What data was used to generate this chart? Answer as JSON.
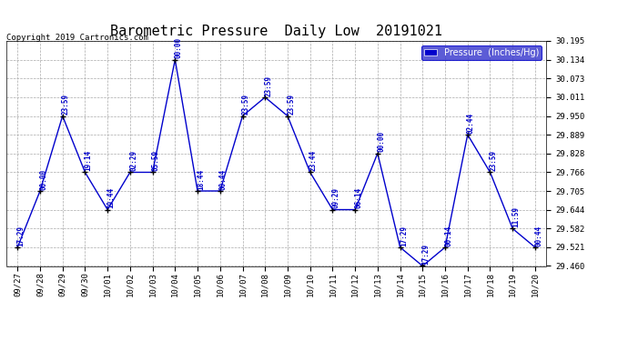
{
  "title": "Barometric Pressure  Daily Low  20191021",
  "copyright": "Copyright 2019 Cartronics.com",
  "legend_label": "Pressure  (Inches/Hg)",
  "x_labels": [
    "09/27",
    "09/28",
    "09/29",
    "09/30",
    "10/01",
    "10/02",
    "10/03",
    "10/04",
    "10/05",
    "10/06",
    "10/07",
    "10/08",
    "10/09",
    "10/10",
    "10/11",
    "10/12",
    "10/13",
    "10/14",
    "10/15",
    "10/16",
    "10/17",
    "10/18",
    "10/19",
    "10/20"
  ],
  "y_values": [
    29.521,
    29.705,
    29.95,
    29.766,
    29.644,
    29.766,
    29.766,
    30.134,
    29.705,
    29.705,
    29.95,
    30.011,
    29.95,
    29.766,
    29.644,
    29.644,
    29.828,
    29.521,
    29.46,
    29.521,
    29.889,
    29.766,
    29.582,
    29.521
  ],
  "point_labels": [
    "17:29",
    "00:00",
    "23:59",
    "19:14",
    "19:44",
    "02:29",
    "05:59",
    "00:00",
    "18:44",
    "00:44",
    "23:59",
    "23:59",
    "23:59",
    "23:44",
    "09:29",
    "06:14",
    "00:00",
    "17:29",
    "17:29",
    "00:14",
    "02:44",
    "23:59",
    "11:59",
    "00:44"
  ],
  "line_color": "#0000cc",
  "marker_color": "#000000",
  "label_color": "#0000cc",
  "grid_color": "#aaaaaa",
  "background_color": "#ffffff",
  "ylim_min": 29.46,
  "ylim_max": 30.195,
  "yticks": [
    29.46,
    29.521,
    29.582,
    29.644,
    29.705,
    29.766,
    29.828,
    29.889,
    29.95,
    30.011,
    30.073,
    30.134,
    30.195
  ],
  "title_fontsize": 11,
  "label_fontsize": 5.5,
  "tick_fontsize": 6.5,
  "legend_fontsize": 7,
  "copyright_fontsize": 6.5
}
